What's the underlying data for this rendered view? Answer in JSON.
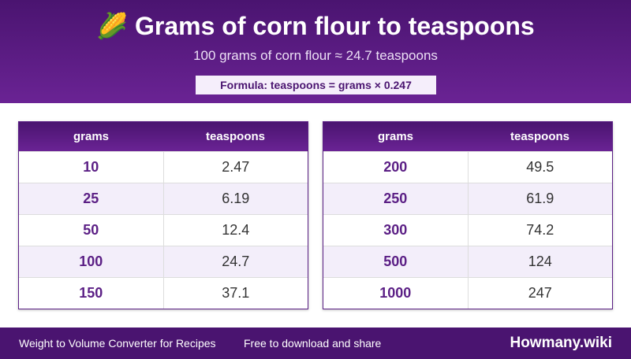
{
  "header": {
    "icon": "🌽",
    "title": "Grams of corn flour to teaspoons",
    "subtitle": "100 grams of corn flour ≈ 24.7 teaspoons",
    "formula": "Formula: teaspoons = grams × 0.247"
  },
  "tables": [
    {
      "columns": [
        "grams",
        "teaspoons"
      ],
      "rows": [
        [
          "10",
          "2.47"
        ],
        [
          "25",
          "6.19"
        ],
        [
          "50",
          "12.4"
        ],
        [
          "100",
          "24.7"
        ],
        [
          "150",
          "37.1"
        ]
      ]
    },
    {
      "columns": [
        "grams",
        "teaspoons"
      ],
      "rows": [
        [
          "200",
          "49.5"
        ],
        [
          "250",
          "61.9"
        ],
        [
          "300",
          "74.2"
        ],
        [
          "500",
          "124"
        ],
        [
          "1000",
          "247"
        ]
      ]
    }
  ],
  "footer": {
    "left": "Weight to Volume Converter for Recipes",
    "middle": "Free to download and share",
    "brand": "Howmany.wiki"
  }
}
